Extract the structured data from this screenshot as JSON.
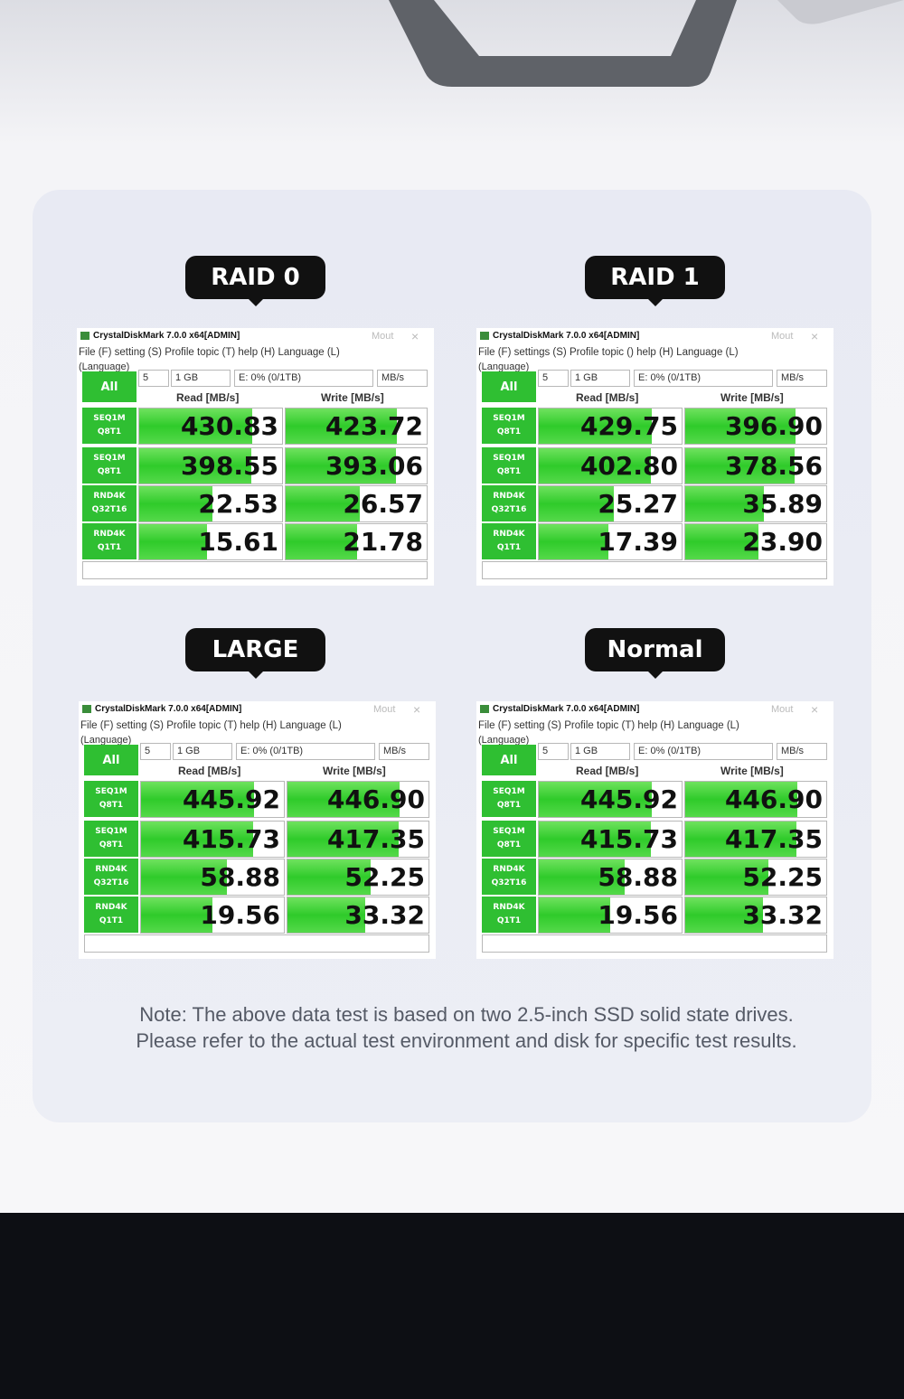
{
  "note": "Note: The above data test is based on two 2.5-inch SSD solid state drives. Please refer to the actual test environment and disk for specific test results.",
  "panels": [
    {
      "label": "RAID 0",
      "title": "CrystalDiskMark 7.0.0 x64[ADMIN]",
      "mout": "Mout",
      "close": "×",
      "menu": "File (F) setting (S) Profile topic (T) help (H) Language (L)",
      "language": "(Language)",
      "count": "5",
      "size": "1 GB",
      "drive": "E: 0% (0/1TB)",
      "unit": "MB/s",
      "all": "All",
      "read_header": "Read [MB/s]",
      "write_header": "Write [MB/s]",
      "rows": [
        {
          "test": "SEQ1M",
          "queue": "Q8T1",
          "read": "430.83",
          "write": "423.72"
        },
        {
          "test": "SEQ1M",
          "queue": "Q8T1",
          "read": "398.55",
          "write": "393.06"
        },
        {
          "test": "RND4K",
          "queue": "Q32T16",
          "read": "22.53",
          "write": "26.57"
        },
        {
          "test": "RND4K",
          "queue": "Q1T1",
          "read": "15.61",
          "write": "21.78"
        }
      ]
    },
    {
      "label": "RAID 1",
      "title": "CrystalDiskMark 7.0.0 x64[ADMIN]",
      "mout": "Mout",
      "close": "×",
      "menu": "File (F) settings (S) Profile topic () help (H) Language (L)",
      "language": "(Language)",
      "count": "5",
      "size": "1 GB",
      "drive": "E: 0% (0/1TB)",
      "unit": "MB/s",
      "all": "All",
      "read_header": "Read [MB/s]",
      "write_header": "Write [MB/s]",
      "rows": [
        {
          "test": "SEQ1M",
          "queue": "Q8T1",
          "read": "429.75",
          "write": "396.90"
        },
        {
          "test": "SEQ1M",
          "queue": "Q8T1",
          "read": "402.80",
          "write": "378.56"
        },
        {
          "test": "RND4K",
          "queue": "Q32T16",
          "read": "25.27",
          "write": "35.89"
        },
        {
          "test": "RND4K",
          "queue": "Q1T1",
          "read": "17.39",
          "write": "23.90"
        }
      ]
    },
    {
      "label": "LARGE",
      "title": "CrystalDiskMark 7.0.0 x64[ADMIN]",
      "mout": "Mout",
      "close": "×",
      "menu": "File (F) setting (S) Profile topic (T) help (H) Language (L)",
      "language": "(Language)",
      "count": "5",
      "size": "1 GB",
      "drive": "E: 0% (0/1TB)",
      "unit": "MB/s",
      "all": "All",
      "read_header": "Read [MB/s]",
      "write_header": "Write [MB/s]",
      "rows": [
        {
          "test": "SEQ1M",
          "queue": "Q8T1",
          "read": "445.92",
          "write": "446.90"
        },
        {
          "test": "SEQ1M",
          "queue": "Q8T1",
          "read": "415.73",
          "write": "417.35"
        },
        {
          "test": "RND4K",
          "queue": "Q32T16",
          "read": "58.88",
          "write": "52.25"
        },
        {
          "test": "RND4K",
          "queue": "Q1T1",
          "read": "19.56",
          "write": "33.32"
        }
      ]
    },
    {
      "label": "Normal",
      "title": "CrystalDiskMark 7.0.0 x64[ADMIN]",
      "mout": "Mout",
      "close": "×",
      "menu": "File (F) setting (S) Profile topic (T) help (H) Language (L)",
      "language": "(Language)",
      "count": "5",
      "size": "1 GB",
      "drive": "E: 0% (0/1TB)",
      "unit": "MB/s",
      "all": "All",
      "read_header": "Read [MB/s]",
      "write_header": "Write [MB/s]",
      "rows": [
        {
          "test": "SEQ1M",
          "queue": "Q8T1",
          "read": "445.92",
          "write": "446.90"
        },
        {
          "test": "SEQ1M",
          "queue": "Q8T1",
          "read": "415.73",
          "write": "417.35"
        },
        {
          "test": "RND4K",
          "queue": "Q32T16",
          "read": "58.88",
          "write": "52.25"
        },
        {
          "test": "RND4K",
          "queue": "Q1T1",
          "read": "19.56",
          "write": "33.32"
        }
      ]
    }
  ]
}
